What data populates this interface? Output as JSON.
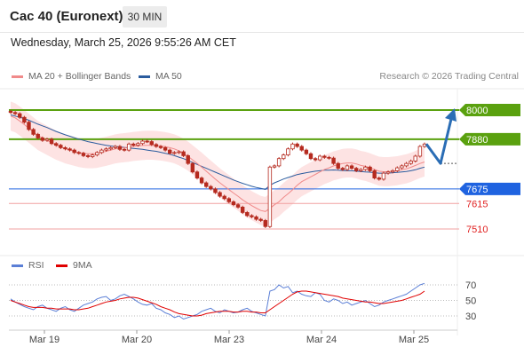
{
  "header": {
    "title": "Cac 40 (Euronext)",
    "timeframe": "30 MIN",
    "datetime": "Wednesday, March 25, 2026 9:55:26 AM CET"
  },
  "legend": {
    "items": [
      {
        "label": "MA 20 + Bollinger Bands",
        "color": "#f08a8a"
      },
      {
        "label": "MA 50",
        "color": "#2b5c9e"
      }
    ],
    "credit": "Research © 2026 Trading Central"
  },
  "rsi_legend": {
    "items": [
      {
        "label": "RSI",
        "color": "#5b7fd6"
      },
      {
        "label": "9MA",
        "color": "#e00000"
      }
    ]
  },
  "colors": {
    "resistance": "#5aa10f",
    "pivot": "#1f63e0",
    "support": "#f2a0a0",
    "support_text": "#e02020",
    "bollinger": "#fde3e3",
    "ma50": "#2b5c9e",
    "ma20": "#f08a8a",
    "candle": "#b52a1f",
    "arrow": "#2a6db5",
    "rsi": "#5b7fd6",
    "rsi_ma": "#e00000"
  },
  "chart_data": [
    {
      "type": "candlestick",
      "title": "",
      "x_ticks": [
        "Mar 19",
        "Mar 20",
        "Mar 23",
        "Mar 24",
        "Mar 25"
      ],
      "price_levels": [
        {
          "value": 8000,
          "label": "8000",
          "kind": "resistance"
        },
        {
          "value": 7880,
          "label": "7880",
          "kind": "resistance"
        },
        {
          "value": 7675,
          "label": "7675",
          "kind": "pivot"
        },
        {
          "value": 7615,
          "label": "7615",
          "kind": "support"
        },
        {
          "value": 7510,
          "label": "7510",
          "kind": "support"
        }
      ],
      "close": [
        7990,
        7985,
        7970,
        7950,
        7920,
        7900,
        7885,
        7875,
        7880,
        7862,
        7855,
        7845,
        7840,
        7835,
        7825,
        7822,
        7812,
        7808,
        7815,
        7825,
        7835,
        7840,
        7845,
        7850,
        7838,
        7835,
        7860,
        7855,
        7862,
        7872,
        7870,
        7858,
        7850,
        7845,
        7835,
        7822,
        7825,
        7828,
        7812,
        7780,
        7745,
        7720,
        7700,
        7685,
        7675,
        7660,
        7645,
        7635,
        7622,
        7610,
        7600,
        7578,
        7565,
        7560,
        7550,
        7545,
        7520,
        7765,
        7770,
        7800,
        7815,
        7840,
        7860,
        7850,
        7835,
        7820,
        7800,
        7795,
        7810,
        7805,
        7802,
        7780,
        7760,
        7755,
        7770,
        7760,
        7750,
        7755,
        7765,
        7750,
        7720,
        7715,
        7740,
        7745,
        7750,
        7762,
        7770,
        7780,
        7790,
        7810,
        7850,
        7860
      ],
      "ma20": [
        7975,
        7968,
        7955,
        7940,
        7925,
        7910,
        7895,
        7885,
        7875,
        7865,
        7855,
        7848,
        7840,
        7835,
        7830,
        7825,
        7822,
        7820,
        7820,
        7822,
        7826,
        7830,
        7835,
        7840,
        7843,
        7845,
        7847,
        7850,
        7852,
        7854,
        7855,
        7855,
        7854,
        7852,
        7849,
        7845,
        7840,
        7832,
        7822,
        7810,
        7795,
        7780,
        7765,
        7748,
        7732,
        7716,
        7700,
        7686,
        7672,
        7658,
        7645,
        7630,
        7618,
        7606,
        7596,
        7586,
        7582,
        7595,
        7610,
        7622,
        7640,
        7655,
        7672,
        7690,
        7705,
        7715,
        7725,
        7735,
        7745,
        7755,
        7762,
        7770,
        7775,
        7780,
        7782,
        7782,
        7778,
        7772,
        7768,
        7762,
        7755,
        7748,
        7746,
        7746,
        7748,
        7750,
        7754,
        7758,
        7764,
        7772,
        7780,
        7786
      ],
      "ma50": [
        7980,
        7975,
        7970,
        7965,
        7958,
        7950,
        7942,
        7935,
        7928,
        7920,
        7912,
        7905,
        7898,
        7892,
        7886,
        7880,
        7875,
        7870,
        7866,
        7862,
        7858,
        7855,
        7852,
        7850,
        7848,
        7846,
        7844,
        7842,
        7840,
        7838,
        7835,
        7832,
        7830,
        7826,
        7822,
        7818,
        7812,
        7806,
        7800,
        7792,
        7784,
        7776,
        7768,
        7760,
        7752,
        7744,
        7736,
        7728,
        7720,
        7712,
        7705,
        7698,
        7692,
        7686,
        7681,
        7677,
        7673,
        7690,
        7700,
        7708,
        7716,
        7722,
        7728,
        7734,
        7738,
        7742,
        7745,
        7748,
        7750,
        7752,
        7752,
        7753,
        7752,
        7751,
        7750,
        7750,
        7748,
        7747,
        7745,
        7744,
        7742,
        7740,
        7740,
        7740,
        7742,
        7743,
        7745,
        7747,
        7750,
        7754,
        7760,
        7765
      ],
      "bb_width": 60,
      "forecast": [
        7860,
        7780,
        8000
      ]
    },
    {
      "type": "line",
      "title": "",
      "y_ticks": [
        70,
        50,
        30
      ],
      "series": [
        {
          "name": "RSI",
          "values": [
            52,
            48,
            45,
            42,
            40,
            38,
            42,
            44,
            40,
            38,
            36,
            40,
            42,
            38,
            36,
            40,
            44,
            46,
            48,
            52,
            54,
            55,
            50,
            52,
            56,
            58,
            55,
            52,
            48,
            45,
            44,
            46,
            40,
            38,
            34,
            32,
            28,
            30,
            26,
            28,
            30,
            32,
            36,
            38,
            40,
            36,
            34,
            38,
            36,
            34,
            35,
            38,
            40,
            36,
            34,
            32,
            30,
            62,
            64,
            70,
            66,
            68,
            60,
            62,
            58,
            56,
            55,
            60,
            58,
            50,
            48,
            52,
            50,
            46,
            48,
            44,
            46,
            48,
            50,
            46,
            42,
            44,
            48,
            50,
            52,
            54,
            56,
            58,
            62,
            66,
            70,
            72
          ]
        },
        {
          "name": "9MA",
          "values": [
            50,
            48,
            46,
            44,
            42,
            41,
            41,
            41,
            40,
            40,
            39,
            39,
            39,
            39,
            38,
            38,
            39,
            40,
            42,
            44,
            46,
            48,
            49,
            50,
            52,
            53,
            54,
            54,
            53,
            51,
            49,
            47,
            45,
            42,
            40,
            38,
            35,
            33,
            32,
            31,
            30,
            30,
            31,
            33,
            34,
            35,
            36,
            36,
            36,
            35,
            35,
            36,
            36,
            35,
            35,
            34,
            34,
            38,
            42,
            46,
            50,
            54,
            58,
            61,
            62,
            62,
            61,
            60,
            59,
            58,
            57,
            56,
            55,
            53,
            52,
            51,
            50,
            49,
            48,
            48,
            47,
            46,
            46,
            47,
            48,
            49,
            50,
            52,
            54,
            56,
            58,
            62
          ]
        }
      ]
    }
  ]
}
